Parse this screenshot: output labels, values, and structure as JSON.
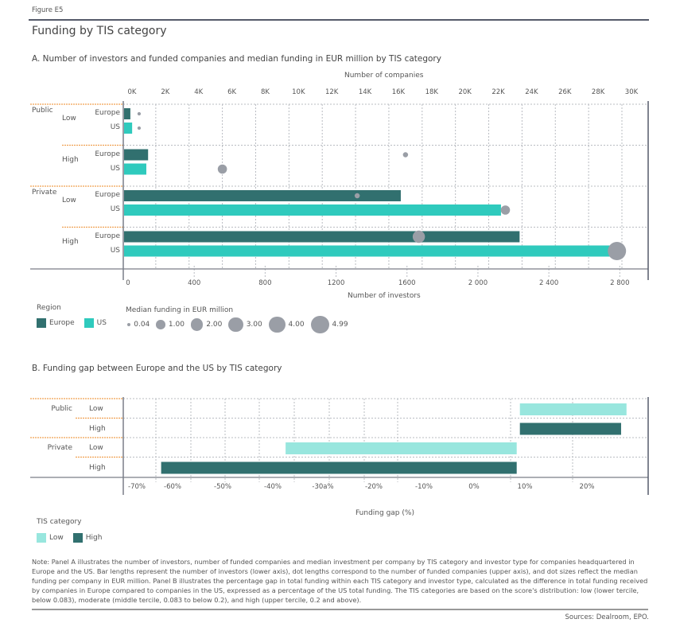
{
  "figure_label": "Figure E5",
  "title": "Funding by TIS category",
  "colors": {
    "europe": "#31706f",
    "us": "#2fcabd",
    "low": "#98e6de",
    "high": "#31706f",
    "dot": "#9a9ea6",
    "orange_rule": "#f0a050",
    "grid": "#b9bcc2",
    "axis": "#7a7e88"
  },
  "chart_data": [
    {
      "type": "bar",
      "panel": "A",
      "title": "A. Number of investors and funded companies and median funding in EUR million by TIS category",
      "xlabel": "Number of investors",
      "x2label": "Number of companies",
      "xlim": [
        0,
        2960
      ],
      "x2lim": [
        0,
        30000
      ],
      "xticks": [
        0,
        400,
        800,
        1200,
        1600,
        2000,
        2400,
        2800
      ],
      "xtick_labels": [
        "0",
        "400",
        "800",
        "1200",
        "1600",
        "2 000",
        "2 400",
        "2 800"
      ],
      "x2ticks": [
        0,
        2000,
        4000,
        6000,
        8000,
        10000,
        12000,
        14000,
        16000,
        18000,
        20000,
        22000,
        24000,
        26000,
        28000,
        30000
      ],
      "x2tick_labels": [
        "0K",
        "2K",
        "4K",
        "6K",
        "8K",
        "10K",
        "12K",
        "14K",
        "16K",
        "18K",
        "20K",
        "22K",
        "24K",
        "26K",
        "28K",
        "30K"
      ],
      "grid": true,
      "groups": [
        {
          "investor_type": "Public",
          "tis": "Low",
          "rows": [
            {
              "region": "Europe",
              "investors": 40,
              "companies": 1000,
              "median_funding": 0.04
            },
            {
              "region": "US",
              "investors": 50,
              "companies": 1000,
              "median_funding": 0.04
            }
          ]
        },
        {
          "investor_type": "",
          "tis": "High",
          "rows": [
            {
              "region": "Europe",
              "investors": 140,
              "companies": 17000,
              "median_funding": 0.2
            },
            {
              "region": "US",
              "investors": 130,
              "companies": 6000,
              "median_funding": 1.0
            }
          ]
        },
        {
          "investor_type": "Private",
          "tis": "Low",
          "rows": [
            {
              "region": "Europe",
              "investors": 1565,
              "companies": 14100,
              "median_funding": 0.2
            },
            {
              "region": "US",
              "investors": 2130,
              "companies": 23000,
              "median_funding": 1.0
            }
          ]
        },
        {
          "investor_type": "",
          "tis": "High",
          "rows": [
            {
              "region": "Europe",
              "investors": 2235,
              "companies": 17800,
              "median_funding": 2.0
            },
            {
              "region": "US",
              "investors": 2770,
              "companies": 29700,
              "median_funding": 4.99
            }
          ]
        }
      ],
      "legend": {
        "region_title": "Region",
        "regions": [
          "Europe",
          "US"
        ],
        "size_title": "Median funding in EUR million",
        "sizes": [
          {
            "label": "0.04",
            "value": 0.04
          },
          {
            "label": "1.00",
            "value": 1.0
          },
          {
            "label": "2.00",
            "value": 2.0
          },
          {
            "label": "3.00",
            "value": 3.0
          },
          {
            "label": "4.00",
            "value": 4.0
          },
          {
            "label": "4.99",
            "value": 4.99
          }
        ],
        "placement": "bottom-left"
      }
    },
    {
      "type": "bar",
      "panel": "B",
      "title": "B. Funding gap between Europe and the US by TIS category",
      "xlabel": "Funding gap (%)",
      "xlim": [
        -73,
        24
      ],
      "xtick_labels": [
        "-70%",
        "-60%",
        "-50%",
        "-40%",
        "-30a%",
        "-20%",
        "-10%",
        "0%",
        "10%",
        "20%"
      ],
      "grid": true,
      "rows": [
        {
          "investor_type": "Public",
          "tis": "Low",
          "value": 20
        },
        {
          "investor_type": "",
          "tis": "High",
          "value": 19
        },
        {
          "investor_type": "Private",
          "tis": "Low",
          "value": -43
        },
        {
          "investor_type": "",
          "tis": "High",
          "value": -66
        }
      ],
      "legend": {
        "title": "TIS category",
        "items": [
          "Low",
          "High"
        ],
        "placement": "bottom-left"
      }
    }
  ],
  "note": "Note: Panel A illustrates the number of investors, number of funded companies and median investment per company by TIS category and investor type for companies headquartered in Europe and the US. Bar lengths represent the number of investors (lower axis), dot lengths correspond to the number of funded companies (upper axis), and dot sizes reflect the median funding per company in EUR million. Panel B illustrates the percentage gap in total funding within each TIS category and investor type, calculated as the difference in total funding received by companies in Europe compared to companies in the US, expressed as a percentage of the US total funding. The TIS categories are based on the score's distribution: low (lower tercile, below 0.083), moderate (middle tercile, 0.083 to below 0.2), and high (upper tercile, 0.2 and above).",
  "sources": "Sources: Dealroom, EPO."
}
